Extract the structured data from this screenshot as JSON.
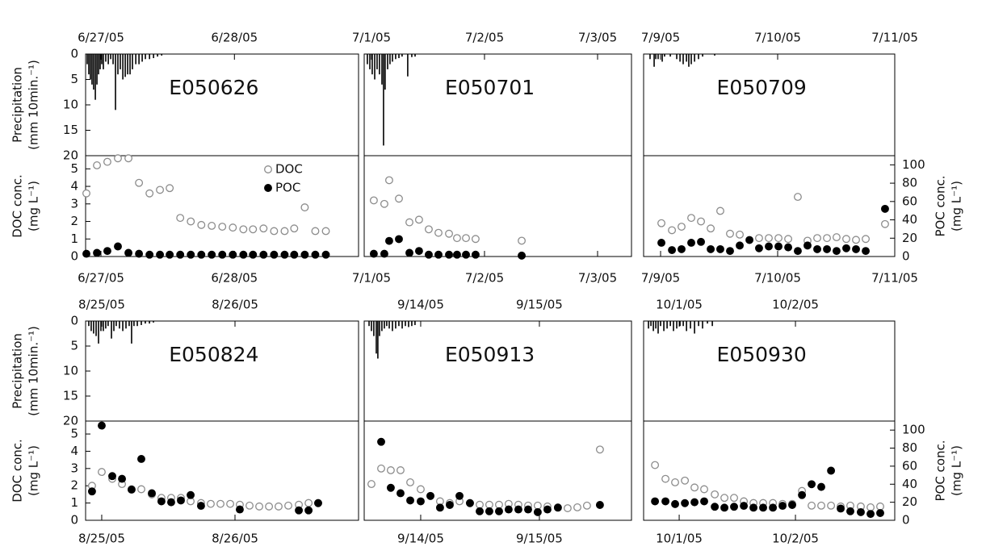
{
  "chart_data": [
    {
      "type": "bar",
      "title": "E050626",
      "color": "#000000",
      "x": [
        -0.103,
        -0.091,
        -0.079,
        -0.067,
        -0.055,
        -0.042,
        -0.03,
        -0.018,
        -0.006,
        0.006,
        0.018,
        0.036,
        0.055,
        0.073,
        0.091,
        0.109,
        0.127,
        0.145,
        0.164,
        0.182,
        0.2,
        0.218,
        0.236,
        0.261,
        0.285,
        0.309,
        0.333,
        0.364,
        0.394,
        0.424,
        0.455
      ],
      "values": [
        2,
        4,
        5,
        6,
        7,
        9,
        6,
        4,
        3,
        2,
        3,
        1.5,
        2,
        1,
        2,
        11,
        4,
        3,
        5,
        4.5,
        4,
        4,
        3,
        2,
        2,
        1.5,
        1,
        1,
        0.8,
        0.5,
        0.3
      ],
      "xlim": [
        -0.115,
        1.93
      ],
      "xticks": [
        {
          "value": 0,
          "label": "6/27/05"
        },
        {
          "value": 1,
          "label": "6/28/05"
        }
      ],
      "ylim": [
        0,
        20
      ],
      "y_reversed": true,
      "yticks": [
        0,
        5,
        10,
        15,
        20
      ],
      "ylabel": [
        "Precipitation",
        "(mm 10min.⁻¹)"
      ]
    },
    {
      "type": "scatter",
      "legend": "upper right",
      "x": [
        -0.109,
        -0.03,
        0.048,
        0.127,
        0.206,
        0.285,
        0.364,
        0.442,
        0.515,
        0.594,
        0.673,
        0.752,
        0.83,
        0.909,
        0.988,
        1.067,
        1.139,
        1.218,
        1.297,
        1.376,
        1.448,
        1.527,
        1.606,
        1.685
      ],
      "series": [
        {
          "name": "DOC",
          "marker": "open",
          "color": "#8c8c8c",
          "values": [
            3.6,
            5.2,
            5.4,
            5.6,
            5.6,
            4.2,
            3.6,
            3.8,
            3.9,
            2.2,
            2.0,
            1.8,
            1.75,
            1.7,
            1.65,
            1.55,
            1.55,
            1.6,
            1.45,
            1.45,
            1.6,
            2.8,
            1.45,
            1.45
          ]
        },
        {
          "name": "POC",
          "marker": "filled",
          "color": "#000000",
          "axis": "y2",
          "values": [
            3,
            4,
            6,
            11,
            4,
            3,
            2,
            2,
            2,
            2,
            2,
            2,
            2,
            2,
            2,
            2,
            2,
            2,
            2,
            2,
            2,
            2,
            2,
            2
          ]
        }
      ],
      "xlim": [
        -0.115,
        1.93
      ],
      "xticks": [
        {
          "value": 0,
          "label": "6/27/05"
        },
        {
          "value": 1,
          "label": "6/28/05"
        }
      ],
      "ylim": [
        0,
        5.75
      ],
      "yticks": [
        0,
        1,
        2,
        3,
        4,
        5
      ],
      "ylabel": [
        "DOC conc.",
        "(mg L⁻¹)"
      ],
      "y2lim": [
        0,
        110
      ]
    },
    {
      "type": "bar",
      "title": "E050701",
      "color": "#000000",
      "x": [
        -0.036,
        -0.014,
        0.007,
        0.029,
        0.05,
        0.071,
        0.093,
        0.107,
        0.121,
        0.143,
        0.164,
        0.186,
        0.214,
        0.243,
        0.271,
        0.321,
        0.357,
        0.386
      ],
      "values": [
        2,
        3,
        4,
        5,
        3,
        4,
        6,
        18,
        7,
        3,
        2,
        1.5,
        1,
        0.8,
        0.5,
        4.4,
        0.6,
        0.5
      ],
      "xlim": [
        -0.064,
        2.3
      ],
      "xticks": [
        {
          "value": 0,
          "label": "7/1/05"
        },
        {
          "value": 1,
          "label": "7/2/05"
        },
        {
          "value": 2,
          "label": "7/3/05"
        }
      ],
      "ylim": [
        0,
        20
      ],
      "y_reversed": true
    },
    {
      "type": "scatter",
      "x": [
        0.021,
        0.114,
        0.157,
        0.243,
        0.336,
        0.421,
        0.507,
        0.593,
        0.686,
        0.757,
        0.836,
        0.921,
        1.329
      ],
      "series": [
        {
          "marker": "open",
          "color": "#8c8c8c",
          "values": [
            3.2,
            3.0,
            4.35,
            3.3,
            1.95,
            2.1,
            1.55,
            1.35,
            1.3,
            1.05,
            1.05,
            1.0,
            0.9
          ]
        },
        {
          "marker": "filled",
          "color": "#000000",
          "axis": "y2",
          "values": [
            3,
            3,
            17,
            19,
            4,
            6,
            2,
            2,
            2,
            2,
            2,
            2,
            1
          ]
        }
      ],
      "xlim": [
        -0.064,
        2.3
      ],
      "xticks": [
        {
          "value": 0,
          "label": "7/1/05"
        },
        {
          "value": 1,
          "label": "7/2/05"
        },
        {
          "value": 2,
          "label": "7/3/05"
        }
      ],
      "ylim": [
        0,
        5.75
      ],
      "y2lim": [
        0,
        110
      ]
    },
    {
      "type": "bar",
      "title": "E050709",
      "color": "#000000",
      "x": [
        -0.09,
        -0.055,
        -0.041,
        -0.021,
        0.014,
        0.034,
        0.083,
        0.138,
        0.166,
        0.193,
        0.221,
        0.241,
        0.262,
        0.29,
        0.324,
        0.359,
        0.462
      ],
      "values": [
        1,
        2.5,
        1,
        1,
        1.5,
        0.5,
        0.5,
        1,
        1.5,
        2,
        1.5,
        2.5,
        2,
        1.5,
        1,
        0.5,
        0.3
      ],
      "xlim": [
        -0.145,
        2.0
      ],
      "xticks": [
        {
          "value": 0,
          "label": "7/9/05"
        },
        {
          "value": 1,
          "label": "7/10/05"
        },
        {
          "value": 2,
          "label": "7/11/05"
        }
      ],
      "ylim": [
        0,
        20
      ],
      "y_reversed": true
    },
    {
      "type": "scatter",
      "x": [
        0.007,
        0.097,
        0.179,
        0.262,
        0.345,
        0.428,
        0.51,
        0.593,
        0.676,
        0.759,
        0.841,
        0.924,
        1.007,
        1.09,
        1.172,
        1.255,
        1.338,
        1.421,
        1.503,
        1.586,
        1.669,
        1.752,
        1.917
      ],
      "series": [
        {
          "marker": "open",
          "color": "#8c8c8c",
          "values": [
            1.9,
            1.5,
            1.7,
            2.2,
            2.0,
            1.6,
            2.6,
            1.3,
            1.25,
            null,
            1.05,
            1.05,
            1.05,
            1.0,
            3.4,
            0.9,
            1.05,
            1.05,
            1.1,
            1.0,
            0.95,
            1.0,
            1.85
          ]
        },
        {
          "marker": "filled",
          "color": "#000000",
          "axis": "y2",
          "values": [
            15,
            7,
            8,
            15,
            16,
            8,
            8,
            6,
            12,
            18,
            9,
            11,
            11,
            10,
            6,
            12,
            8,
            8,
            6,
            9,
            8,
            6,
            52
          ]
        }
      ],
      "xlim": [
        -0.145,
        2.0
      ],
      "xticks": [
        {
          "value": 0,
          "label": "7/9/05"
        },
        {
          "value": 1,
          "label": "7/10/05"
        },
        {
          "value": 2,
          "label": "7/11/05"
        }
      ],
      "ylim": [
        0,
        5.75
      ],
      "y2lim": [
        0,
        110
      ],
      "y2ticks": [
        0,
        20,
        40,
        60,
        80,
        100
      ],
      "y2label": [
        "POC conc.",
        "(mg L⁻¹)"
      ]
    },
    {
      "type": "bar",
      "title": "E050824",
      "color": "#000000",
      "x": [
        -0.097,
        -0.079,
        -0.061,
        -0.042,
        -0.024,
        -0.006,
        0.012,
        0.03,
        0.048,
        0.073,
        0.091,
        0.109,
        0.133,
        0.158,
        0.182,
        0.206,
        0.224,
        0.242,
        0.267,
        0.297,
        0.327,
        0.358,
        0.388
      ],
      "values": [
        1,
        2,
        2.5,
        3,
        4.5,
        2,
        2,
        1.5,
        1,
        3.5,
        2,
        1,
        1.5,
        2,
        1.5,
        1,
        4.5,
        1,
        1,
        0.8,
        0.5,
        0.5,
        0.3
      ],
      "xlim": [
        -0.121,
        1.927
      ],
      "xticks": [
        {
          "value": 0,
          "label": "8/25/05"
        },
        {
          "value": 1,
          "label": "8/26/05"
        }
      ],
      "ylim": [
        0,
        20
      ],
      "y_reversed": true,
      "yticks": [
        0,
        5,
        10,
        15,
        20
      ],
      "ylabel": [
        "Precipitation",
        "(mm 10min.⁻¹)"
      ]
    },
    {
      "type": "scatter",
      "x": [
        -0.073,
        0,
        0.079,
        0.152,
        0.224,
        0.297,
        0.376,
        0.448,
        0.521,
        0.594,
        0.667,
        0.745,
        0.818,
        0.891,
        0.964,
        1.036,
        1.109,
        1.182,
        1.255,
        1.327,
        1.4,
        1.479,
        1.552,
        1.624
      ],
      "series": [
        {
          "marker": "open",
          "color": "#8c8c8c",
          "values": [
            2.0,
            2.8,
            2.4,
            2.1,
            1.8,
            1.8,
            1.5,
            1.3,
            1.3,
            1.3,
            1.1,
            1.0,
            0.95,
            0.95,
            0.95,
            0.9,
            0.85,
            0.8,
            0.8,
            0.8,
            0.85,
            0.9,
            1.0,
            1.0
          ]
        },
        {
          "marker": "filled",
          "color": "#000000",
          "axis": "y2",
          "values": [
            32,
            105,
            49,
            46,
            34,
            68,
            30,
            21,
            20,
            22,
            28,
            16,
            null,
            null,
            null,
            12,
            null,
            null,
            null,
            null,
            null,
            11,
            11,
            19
          ]
        }
      ],
      "xlim": [
        -0.121,
        1.927
      ],
      "xticks": [
        {
          "value": 0,
          "label": "8/25/05"
        },
        {
          "value": 1,
          "label": "8/26/05"
        }
      ],
      "ylim": [
        0,
        5.75
      ],
      "yticks": [
        0,
        1,
        2,
        3,
        4,
        5
      ],
      "ylabel": [
        "DOC conc.",
        "(mg L⁻¹)"
      ],
      "y2lim": [
        0,
        110
      ]
    },
    {
      "type": "bar",
      "title": "E050913",
      "color": "#000000",
      "x": [
        -0.435,
        -0.415,
        -0.395,
        -0.374,
        -0.361,
        -0.347,
        -0.327,
        -0.306,
        -0.286,
        -0.265,
        -0.238,
        -0.211,
        -0.184,
        -0.156,
        -0.129,
        -0.102,
        -0.075,
        -0.048
      ],
      "values": [
        1,
        2,
        3,
        6.5,
        7.5,
        3,
        2,
        1.5,
        1,
        1.5,
        2,
        1.5,
        1,
        1.5,
        1,
        1.2,
        1,
        0.8
      ],
      "xlim": [
        -0.476,
        1.776
      ],
      "xticks": [
        {
          "value": 0,
          "label": "9/14/05"
        },
        {
          "value": 1,
          "label": "9/15/05"
        }
      ],
      "ylim": [
        0,
        20
      ],
      "y_reversed": true
    },
    {
      "type": "scatter",
      "x": [
        -0.415,
        -0.333,
        -0.252,
        -0.17,
        -0.088,
        0,
        0.082,
        0.163,
        0.245,
        0.327,
        0.415,
        0.497,
        0.578,
        0.66,
        0.741,
        0.823,
        0.905,
        0.986,
        1.068,
        1.156,
        1.238,
        1.32,
        1.401,
        1.51
      ],
      "series": [
        {
          "marker": "open",
          "color": "#8c8c8c",
          "values": [
            2.1,
            3.0,
            2.9,
            2.9,
            2.2,
            1.8,
            1.4,
            1.1,
            1.0,
            1.1,
            1.0,
            0.9,
            0.9,
            0.9,
            0.95,
            0.9,
            0.85,
            0.85,
            0.8,
            0.75,
            0.7,
            0.75,
            0.85,
            4.1
          ]
        },
        {
          "marker": "filled",
          "color": "#000000",
          "axis": "y2",
          "values": [
            null,
            87,
            36,
            30,
            22,
            21,
            27,
            14,
            17,
            27,
            19,
            10,
            10,
            10,
            12,
            12,
            12,
            9,
            12,
            14,
            null,
            null,
            null,
            17
          ]
        }
      ],
      "xlim": [
        -0.476,
        1.776
      ],
      "xticks": [
        {
          "value": 0,
          "label": "9/14/05"
        },
        {
          "value": 1,
          "label": "9/15/05"
        }
      ],
      "ylim": [
        0,
        5.75
      ],
      "y2lim": [
        0,
        110
      ]
    },
    {
      "type": "bar",
      "title": "E050930",
      "color": "#000000",
      "x": [
        -0.264,
        -0.243,
        -0.222,
        -0.201,
        -0.181,
        -0.16,
        -0.132,
        -0.104,
        -0.076,
        -0.049,
        -0.021,
        0.007,
        0.035,
        0.063,
        0.097,
        0.132,
        0.167,
        0.201,
        0.243,
        0.285
      ],
      "values": [
        1.5,
        1,
        2,
        1.5,
        2.5,
        1,
        2,
        1.5,
        1,
        2,
        1.5,
        1,
        1,
        2,
        1.5,
        2.5,
        1,
        1.5,
        0.5,
        1
      ],
      "xlim": [
        -0.306,
        1.854
      ],
      "xticks": [
        {
          "value": 0,
          "label": "10/1/05"
        },
        {
          "value": 1,
          "label": "10/2/05"
        }
      ],
      "ylim": [
        0,
        20
      ],
      "y_reversed": true
    },
    {
      "type": "scatter",
      "x": [
        -0.208,
        -0.118,
        -0.035,
        0.049,
        0.132,
        0.215,
        0.306,
        0.389,
        0.472,
        0.556,
        0.639,
        0.722,
        0.806,
        0.889,
        0.972,
        1.056,
        1.139,
        1.222,
        1.306,
        1.389,
        1.472,
        1.562,
        1.646,
        1.729
      ],
      "series": [
        {
          "marker": "open",
          "color": "#8c8c8c",
          "values": [
            3.2,
            2.4,
            2.2,
            2.3,
            1.9,
            1.8,
            1.5,
            1.3,
            1.3,
            1.1,
            1.0,
            1.0,
            1.0,
            0.95,
            0.95,
            1.7,
            0.85,
            0.85,
            0.85,
            0.8,
            0.85,
            0.8,
            0.75,
            0.8
          ]
        },
        {
          "marker": "filled",
          "color": "#000000",
          "axis": "y2",
          "values": [
            21,
            21,
            18,
            19,
            20,
            21,
            15,
            14,
            15,
            16,
            14,
            14,
            14,
            16,
            17,
            28,
            40,
            37,
            55,
            13,
            10,
            9,
            7,
            8
          ]
        }
      ],
      "xlim": [
        -0.306,
        1.854
      ],
      "xticks": [
        {
          "value": 0,
          "label": "10/1/05"
        },
        {
          "value": 1,
          "label": "10/2/05"
        }
      ],
      "ylim": [
        0,
        5.75
      ],
      "y2lim": [
        0,
        110
      ],
      "y2ticks": [
        0,
        20,
        40,
        60,
        80,
        100
      ],
      "y2label": [
        "POC conc.",
        "(mg L⁻¹)"
      ]
    }
  ]
}
